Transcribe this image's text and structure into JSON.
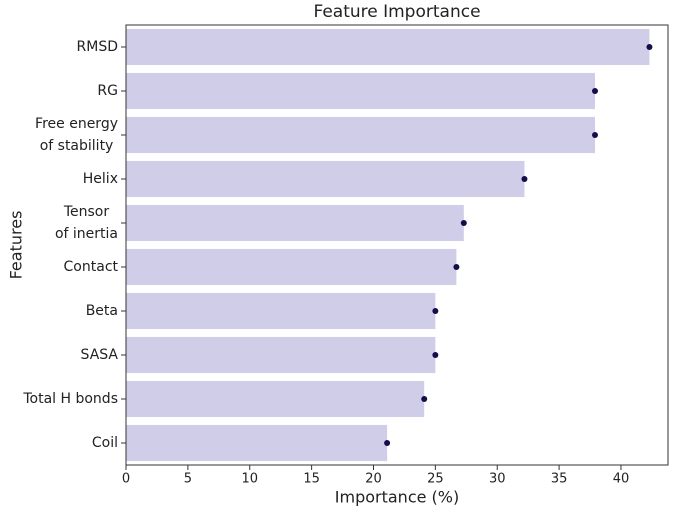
{
  "chart_data": {
    "type": "bar",
    "orientation": "horizontal",
    "title": "Feature Importance",
    "x_label": "Importance (%)",
    "y_label": "Features",
    "categories": [
      "RMSD",
      "RG",
      "Free energy\nof stability",
      "Helix",
      "Tensor\nof inertia",
      "Contact",
      "Beta",
      "SASA",
      "Total H bonds",
      "Coil"
    ],
    "values": [
      42.3,
      37.9,
      37.9,
      32.2,
      27.3,
      26.7,
      25.0,
      25.0,
      24.1,
      21.1
    ],
    "color": "#cfcde8",
    "marker_color": "#160c48",
    "xlim": [
      0,
      43.8
    ],
    "xticks": [
      0,
      5,
      10,
      15,
      20,
      25,
      30,
      35,
      40
    ]
  }
}
